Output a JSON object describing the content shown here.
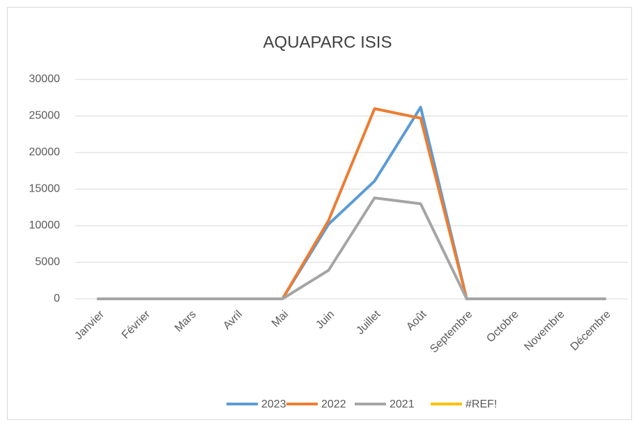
{
  "chart_data": {
    "type": "line",
    "title": "AQUAPARC ISIS",
    "categories": [
      "Janvier",
      "Février",
      "Mars",
      "Avril",
      "Mai",
      "Juin",
      "Juillet",
      "Août",
      "Septembre",
      "Octobre",
      "Novembre",
      "Décembre"
    ],
    "series": [
      {
        "name": "2023",
        "color": "#5b9bd5",
        "values": [
          0,
          0,
          0,
          0,
          0,
          10200,
          16100,
          26200,
          0,
          0,
          0,
          0
        ]
      },
      {
        "name": "2022",
        "color": "#ed7d31",
        "values": [
          0,
          0,
          0,
          0,
          0,
          10700,
          26000,
          24700,
          0,
          0,
          0,
          0
        ]
      },
      {
        "name": "2021",
        "color": "#a5a5a5",
        "values": [
          0,
          0,
          0,
          0,
          0,
          3900,
          13800,
          13000,
          0,
          0,
          0,
          0
        ]
      },
      {
        "name": "#REF!",
        "color": "#ffc000",
        "values": [
          null,
          null,
          null,
          null,
          null,
          null,
          null,
          null,
          null,
          null,
          null,
          null
        ]
      }
    ],
    "ylim": [
      0,
      30000
    ],
    "yticks": [
      0,
      5000,
      10000,
      15000,
      20000,
      25000,
      30000
    ],
    "grid": true,
    "legend": "bottom"
  }
}
